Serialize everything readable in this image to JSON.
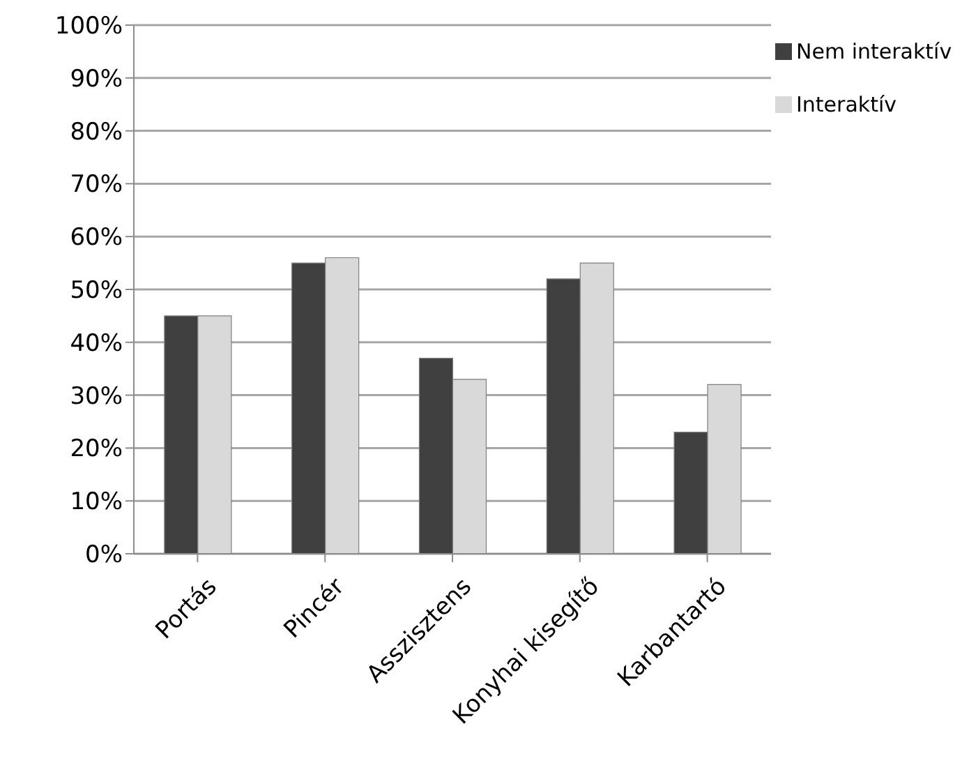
{
  "chart_data": {
    "type": "bar",
    "categories": [
      "Portás",
      "Pincér",
      "Asszisztens",
      "Konyhai kisegítő",
      "Karbantartó"
    ],
    "series": [
      {
        "name": "Nem interaktív",
        "color": "#404040",
        "values": [
          45,
          55,
          37,
          52,
          23
        ]
      },
      {
        "name": "Interaktív",
        "color": "#d9d9d9",
        "values": [
          45,
          56,
          33,
          55,
          32
        ]
      }
    ],
    "ylim": [
      0,
      100
    ],
    "yticks": [
      {
        "value": 0,
        "label": "0%"
      },
      {
        "value": 10,
        "label": "10%"
      },
      {
        "value": 20,
        "label": "20%"
      },
      {
        "value": 30,
        "label": "30%"
      },
      {
        "value": 40,
        "label": "40%"
      },
      {
        "value": 50,
        "label": "50%"
      },
      {
        "value": 60,
        "label": "60%"
      },
      {
        "value": 70,
        "label": "70%"
      },
      {
        "value": 80,
        "label": "80%"
      },
      {
        "value": 90,
        "label": "90%"
      },
      {
        "value": 100,
        "label": "100%"
      }
    ],
    "grid": "y",
    "legend": "top right"
  }
}
